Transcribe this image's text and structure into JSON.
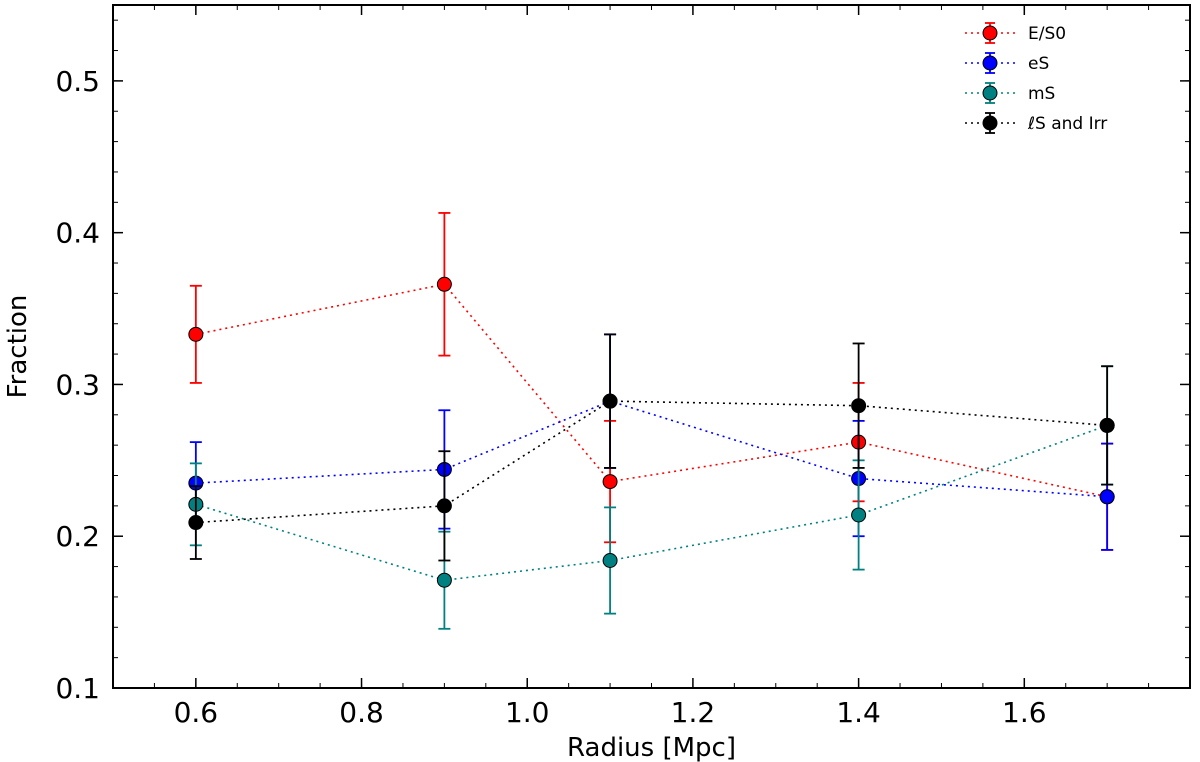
{
  "chart_data": {
    "type": "scatter",
    "xlabel": "Radius [Mpc]",
    "ylabel": "Fraction",
    "xlim": [
      0.5,
      1.8
    ],
    "ylim": [
      0.1,
      0.55
    ],
    "xticks": [
      0.6,
      0.8,
      1.0,
      1.2,
      1.4,
      1.6
    ],
    "xtick_labels": [
      "0.6",
      "0.8",
      "1.0",
      "1.2",
      "1.4",
      "1.6"
    ],
    "yticks": [
      0.1,
      0.2,
      0.3,
      0.4,
      0.5
    ],
    "ytick_labels": [
      "0.1",
      "0.2",
      "0.3",
      "0.4",
      "0.5"
    ],
    "grid": false,
    "legend_position": "top-right",
    "x": [
      0.6,
      0.9,
      1.1,
      1.4,
      1.7
    ],
    "series": [
      {
        "name": "E/S0",
        "color": "#ff0000",
        "values": [
          0.333,
          0.366,
          0.236,
          0.262,
          0.226
        ],
        "yerr": [
          0.032,
          0.047,
          0.04,
          0.039,
          0.035
        ]
      },
      {
        "name": "eS",
        "color": "#0000ff",
        "values": [
          0.235,
          0.244,
          0.289,
          0.238,
          0.226
        ],
        "yerr": [
          0.027,
          0.039,
          0.044,
          0.038,
          0.035
        ]
      },
      {
        "name": "mS",
        "color": "#008080",
        "values": [
          0.221,
          0.171,
          0.184,
          0.214,
          0.273
        ],
        "yerr": [
          0.027,
          0.032,
          0.035,
          0.036,
          0.039
        ]
      },
      {
        "name": "ℓS and Irr",
        "color": "#000000",
        "values": [
          0.209,
          0.22,
          0.289,
          0.286,
          0.273
        ],
        "yerr": [
          0.024,
          0.036,
          0.044,
          0.041,
          0.039
        ]
      }
    ]
  }
}
